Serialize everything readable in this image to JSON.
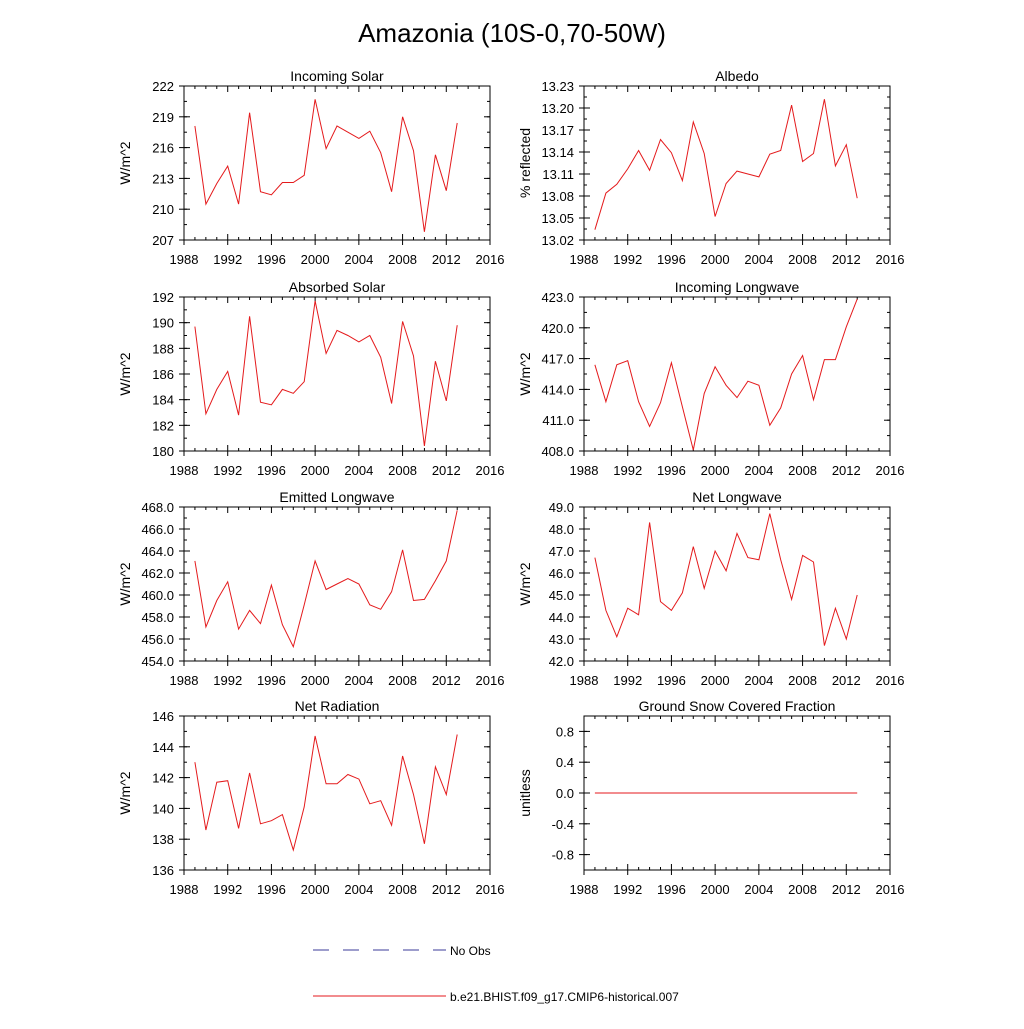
{
  "figure": {
    "title": "Amazonia (10S-0,70-50W)",
    "legend": [
      {
        "label": "No Obs",
        "color": "#3b3b9a",
        "style": "dashed"
      },
      {
        "label": "b.e21.BHIST.f09_g17.CMIP6-historical.007",
        "color": "#e41a1c",
        "style": "solid"
      }
    ]
  },
  "chart_data": [
    {
      "type": "line",
      "title": "Incoming Solar",
      "ylabel": "W/m^2",
      "xlim": [
        1988,
        2016
      ],
      "ylim": [
        207,
        222
      ],
      "xticks": [
        "1988",
        "1992",
        "1996",
        "2000",
        "2004",
        "2008",
        "2012",
        "2016"
      ],
      "yticks": [
        "207",
        "210",
        "213",
        "216",
        "219",
        "222"
      ],
      "x": [
        1989,
        1990,
        1991,
        1992,
        1993,
        1994,
        1995,
        1996,
        1997,
        1998,
        1999,
        2000,
        2001,
        2002,
        2003,
        2004,
        2005,
        2006,
        2007,
        2008,
        2009,
        2010,
        2011,
        2012,
        2013
      ],
      "series": [
        {
          "name": "b.e21.BHIST.f09_g17.CMIP6-historical.007",
          "color": "#e41a1c",
          "values": [
            218.1,
            210.5,
            212.5,
            214.2,
            210.5,
            219.4,
            211.7,
            211.4,
            212.6,
            212.6,
            213.3,
            220.7,
            215.9,
            218.1,
            217.5,
            216.9,
            217.6,
            215.5,
            211.7,
            219.0,
            215.7,
            207.8,
            215.3,
            211.8,
            218.4
          ]
        }
      ]
    },
    {
      "type": "line",
      "title": "Albedo",
      "ylabel": "% reflected",
      "xlim": [
        1988,
        2016
      ],
      "ylim": [
        13.02,
        13.23
      ],
      "xticks": [
        "1988",
        "1992",
        "1996",
        "2000",
        "2004",
        "2008",
        "2012",
        "2016"
      ],
      "yticks": [
        "13.02",
        "13.05",
        "13.08",
        "13.11",
        "13.14",
        "13.17",
        "13.20",
        "13.23"
      ],
      "x": [
        1989,
        1990,
        1991,
        1992,
        1993,
        1994,
        1995,
        1996,
        1997,
        1998,
        1999,
        2000,
        2001,
        2002,
        2003,
        2004,
        2005,
        2006,
        2007,
        2008,
        2009,
        2010,
        2011,
        2012,
        2013
      ],
      "series": [
        {
          "name": "b.e21.BHIST.f09_g17.CMIP6-historical.007",
          "color": "#e41a1c",
          "values": [
            13.034,
            13.084,
            13.096,
            13.117,
            13.142,
            13.115,
            13.157,
            13.139,
            13.101,
            13.181,
            13.138,
            13.052,
            13.097,
            13.114,
            13.11,
            13.106,
            13.137,
            13.142,
            13.204,
            13.127,
            13.138,
            13.212,
            13.121,
            13.15,
            13.077
          ]
        }
      ]
    },
    {
      "type": "line",
      "title": "Absorbed Solar",
      "ylabel": "W/m^2",
      "xlim": [
        1988,
        2016
      ],
      "ylim": [
        180,
        192
      ],
      "xticks": [
        "1988",
        "1992",
        "1996",
        "2000",
        "2004",
        "2008",
        "2012",
        "2016"
      ],
      "yticks": [
        "180",
        "182",
        "184",
        "186",
        "188",
        "190",
        "192"
      ],
      "x": [
        1989,
        1990,
        1991,
        1992,
        1993,
        1994,
        1995,
        1996,
        1997,
        1998,
        1999,
        2000,
        2001,
        2002,
        2003,
        2004,
        2005,
        2006,
        2007,
        2008,
        2009,
        2010,
        2011,
        2012,
        2013
      ],
      "series": [
        {
          "name": "b.e21.BHIST.f09_g17.CMIP6-historical.007",
          "color": "#e41a1c",
          "values": [
            189.7,
            182.9,
            184.8,
            186.2,
            182.8,
            190.5,
            183.8,
            183.6,
            184.8,
            184.5,
            185.4,
            191.7,
            187.6,
            189.4,
            189.0,
            188.5,
            189.0,
            187.3,
            183.7,
            190.1,
            187.4,
            180.4,
            187.0,
            183.9,
            189.8
          ]
        }
      ]
    },
    {
      "type": "line",
      "title": "Incoming Longwave",
      "ylabel": "W/m^2",
      "xlim": [
        1988,
        2016
      ],
      "ylim": [
        408.0,
        423.0
      ],
      "xticks": [
        "1988",
        "1992",
        "1996",
        "2000",
        "2004",
        "2008",
        "2012",
        "2016"
      ],
      "yticks": [
        "408.0",
        "411.0",
        "414.0",
        "417.0",
        "420.0",
        "423.0"
      ],
      "x": [
        1989,
        1990,
        1991,
        1992,
        1993,
        1994,
        1995,
        1996,
        1997,
        1998,
        1999,
        2000,
        2001,
        2002,
        2003,
        2004,
        2005,
        2006,
        2007,
        2008,
        2009,
        2010,
        2011,
        2012,
        2013
      ],
      "series": [
        {
          "name": "b.e21.BHIST.f09_g17.CMIP6-historical.007",
          "color": "#e41a1c",
          "values": [
            416.4,
            412.8,
            416.4,
            416.8,
            412.8,
            410.4,
            412.7,
            416.6,
            412.3,
            408.1,
            413.6,
            416.2,
            414.4,
            413.2,
            414.8,
            414.4,
            410.5,
            412.2,
            415.5,
            417.3,
            413.0,
            416.9,
            416.9,
            420.1,
            422.8
          ]
        }
      ]
    },
    {
      "type": "line",
      "title": "Emitted Longwave",
      "ylabel": "W/m^2",
      "xlim": [
        1988,
        2016
      ],
      "ylim": [
        454.0,
        468.0
      ],
      "xticks": [
        "1988",
        "1992",
        "1996",
        "2000",
        "2004",
        "2008",
        "2012",
        "2016"
      ],
      "yticks": [
        "454.0",
        "456.0",
        "458.0",
        "460.0",
        "462.0",
        "464.0",
        "466.0",
        "468.0"
      ],
      "x": [
        1989,
        1990,
        1991,
        1992,
        1993,
        1994,
        1995,
        1996,
        1997,
        1998,
        1999,
        2000,
        2001,
        2002,
        2003,
        2004,
        2005,
        2006,
        2007,
        2008,
        2009,
        2010,
        2011,
        2012,
        2013
      ],
      "series": [
        {
          "name": "b.e21.BHIST.f09_g17.CMIP6-historical.007",
          "color": "#e41a1c",
          "values": [
            463.1,
            457.1,
            459.5,
            461.2,
            456.9,
            458.6,
            457.4,
            460.9,
            457.3,
            455.3,
            459.1,
            463.1,
            460.5,
            461.0,
            461.5,
            461.0,
            459.1,
            458.7,
            460.3,
            464.1,
            459.5,
            459.6,
            461.3,
            463.1,
            467.7
          ]
        }
      ]
    },
    {
      "type": "line",
      "title": "Net Longwave",
      "ylabel": "W/m^2",
      "xlim": [
        1988,
        2016
      ],
      "ylim": [
        42.0,
        49.0
      ],
      "xticks": [
        "1988",
        "1992",
        "1996",
        "2000",
        "2004",
        "2008",
        "2012",
        "2016"
      ],
      "yticks": [
        "42.0",
        "43.0",
        "44.0",
        "45.0",
        "46.0",
        "47.0",
        "48.0",
        "49.0"
      ],
      "x": [
        1989,
        1990,
        1991,
        1992,
        1993,
        1994,
        1995,
        1996,
        1997,
        1998,
        1999,
        2000,
        2001,
        2002,
        2003,
        2004,
        2005,
        2006,
        2007,
        2008,
        2009,
        2010,
        2011,
        2012,
        2013
      ],
      "series": [
        {
          "name": "b.e21.BHIST.f09_g17.CMIP6-historical.007",
          "color": "#e41a1c",
          "values": [
            46.7,
            44.3,
            43.1,
            44.4,
            44.1,
            48.3,
            44.7,
            44.3,
            45.1,
            47.2,
            45.3,
            47.0,
            46.1,
            47.8,
            46.7,
            46.6,
            48.7,
            46.6,
            44.8,
            46.8,
            46.5,
            42.7,
            44.4,
            43.0,
            45.0
          ]
        }
      ]
    },
    {
      "type": "line",
      "title": "Net Radiation",
      "ylabel": "W/m^2",
      "xlim": [
        1988,
        2016
      ],
      "ylim": [
        136,
        146
      ],
      "xticks": [
        "1988",
        "1992",
        "1996",
        "2000",
        "2004",
        "2008",
        "2012",
        "2016"
      ],
      "yticks": [
        "136",
        "138",
        "140",
        "142",
        "144",
        "146"
      ],
      "x": [
        1989,
        1990,
        1991,
        1992,
        1993,
        1994,
        1995,
        1996,
        1997,
        1998,
        1999,
        2000,
        2001,
        2002,
        2003,
        2004,
        2005,
        2006,
        2007,
        2008,
        2009,
        2010,
        2011,
        2012,
        2013
      ],
      "series": [
        {
          "name": "b.e21.BHIST.f09_g17.CMIP6-historical.007",
          "color": "#e41a1c",
          "values": [
            143.0,
            138.6,
            141.7,
            141.8,
            138.7,
            142.3,
            139.0,
            139.2,
            139.6,
            137.3,
            140.1,
            144.7,
            141.6,
            141.6,
            142.2,
            141.9,
            140.3,
            140.5,
            138.9,
            143.4,
            140.9,
            137.7,
            142.7,
            140.9,
            144.8
          ]
        }
      ]
    },
    {
      "type": "line",
      "title": "Ground Snow Covered Fraction",
      "ylabel": "unitless",
      "xlim": [
        1988,
        2016
      ],
      "ylim": [
        -1.0,
        1.0
      ],
      "xticks": [
        "1988",
        "1992",
        "1996",
        "2000",
        "2004",
        "2008",
        "2012",
        "2016"
      ],
      "yticks": [
        "-0.8",
        "-0.4",
        "0.0",
        "0.4",
        "0.8"
      ],
      "ytick_values": [
        -0.8,
        -0.4,
        0.0,
        0.4,
        0.8
      ],
      "x": [
        1989,
        1990,
        1991,
        1992,
        1993,
        1994,
        1995,
        1996,
        1997,
        1998,
        1999,
        2000,
        2001,
        2002,
        2003,
        2004,
        2005,
        2006,
        2007,
        2008,
        2009,
        2010,
        2011,
        2012,
        2013
      ],
      "series": [
        {
          "name": "b.e21.BHIST.f09_g17.CMIP6-historical.007",
          "color": "#e41a1c",
          "values": [
            0,
            0,
            0,
            0,
            0,
            0,
            0,
            0,
            0,
            0,
            0,
            0,
            0,
            0,
            0,
            0,
            0,
            0,
            0,
            0,
            0,
            0,
            0,
            0,
            0
          ]
        }
      ]
    }
  ]
}
